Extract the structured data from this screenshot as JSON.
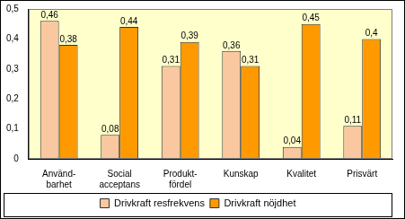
{
  "chart_data": {
    "type": "bar",
    "categories": [
      "Använd-\nbarhet",
      "Social\nacceptans",
      "Produkt-\nfördel",
      "Kunskap",
      "Kvalitet",
      "Prisvärt"
    ],
    "series": [
      {
        "name": "Drivkraft resfrekvens",
        "color": "#fac8a0",
        "values": [
          0.46,
          0.08,
          0.31,
          0.36,
          0.04,
          0.11
        ],
        "value_labels": [
          "0,46",
          "0,08",
          "0,31",
          "0,36",
          "0,04",
          "0,11"
        ]
      },
      {
        "name": "Drivkraft nöjdhet",
        "color": "#ff9900",
        "values": [
          0.38,
          0.44,
          0.39,
          0.31,
          0.45,
          0.4
        ],
        "value_labels": [
          "0,38",
          "0,44",
          "0,39",
          "0,31",
          "0,45",
          "0,4"
        ]
      }
    ],
    "ylim": [
      0,
      0.5
    ],
    "yticks": [
      0,
      {
        "value": 0.1,
        "label": "0,1"
      },
      {
        "value": 0.2,
        "label": "0,2"
      },
      {
        "value": 0.3,
        "label": "0,3"
      },
      {
        "value": 0.4,
        "label": "0,4"
      },
      {
        "value": 0.5,
        "label": "0,5"
      }
    ],
    "grid": false,
    "legend": "bottom",
    "data_labels": true
  }
}
